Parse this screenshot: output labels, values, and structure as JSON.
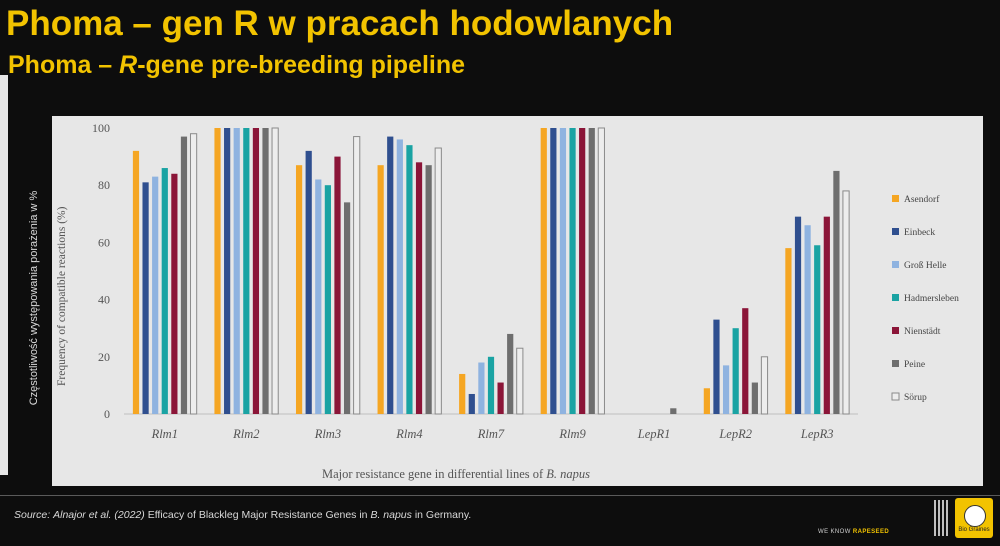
{
  "slide": {
    "title_pl": "Phoma – gen R w pracach hodowlanych",
    "title_en_prefix": "Phoma – ",
    "title_en_italic": "R",
    "title_en_suffix": "-gene pre-breeding pipeline",
    "outer_y_label": "Częstotliwość występowania porażenia w %",
    "source_label": "Source:",
    "source_authors": "Alnajor et al.",
    "source_year": "(2022)",
    "source_title_a": "Efficacy of Blackleg Major Resistance Genes in",
    "source_title_italic": "B. napus",
    "source_title_b": "in Germany.",
    "slogan_prefix": "WE KNOW",
    "slogan_highlight": "RAPESEED",
    "logo_text": "Bio Graines"
  },
  "chart_data": {
    "type": "bar",
    "ylabel": "Frequency of compatible reactions (%)",
    "xlabel_prefix": "Major resistance gene in differential lines of",
    "xlabel_italic": "B. napus",
    "ylim": [
      0,
      100
    ],
    "yticks": [
      0,
      20,
      40,
      60,
      80,
      100
    ],
    "grid": false,
    "legend_position": "right",
    "categories": [
      "Rlm1",
      "Rlm2",
      "Rlm3",
      "Rlm4",
      "Rlm7",
      "Rlm9",
      "LepR1",
      "LepR2",
      "LepR3"
    ],
    "series": [
      {
        "name": "Asendorf",
        "color": "#f5a623",
        "values": [
          92,
          100,
          87,
          87,
          14,
          100,
          0,
          9,
          58
        ]
      },
      {
        "name": "Einbeck",
        "color": "#2f4f8f",
        "values": [
          81,
          100,
          92,
          97,
          7,
          100,
          0,
          33,
          69
        ]
      },
      {
        "name": "Groß Helle",
        "color": "#8fb3e0",
        "values": [
          83,
          100,
          82,
          96,
          18,
          100,
          0,
          17,
          66
        ]
      },
      {
        "name": "Hadmersleben",
        "color": "#1aa3a3",
        "values": [
          86,
          100,
          80,
          94,
          20,
          100,
          0,
          30,
          59
        ]
      },
      {
        "name": "Nienstädt",
        "color": "#8b1538",
        "values": [
          84,
          100,
          90,
          88,
          11,
          100,
          0,
          37,
          69
        ]
      },
      {
        "name": "Peine",
        "color": "#6e6e6e",
        "values": [
          97,
          100,
          74,
          87,
          28,
          100,
          2,
          11,
          85
        ]
      },
      {
        "name": "Sörup",
        "color": "#ededed",
        "values": [
          98,
          100,
          97,
          93,
          23,
          100,
          0,
          20,
          78
        ]
      }
    ]
  }
}
